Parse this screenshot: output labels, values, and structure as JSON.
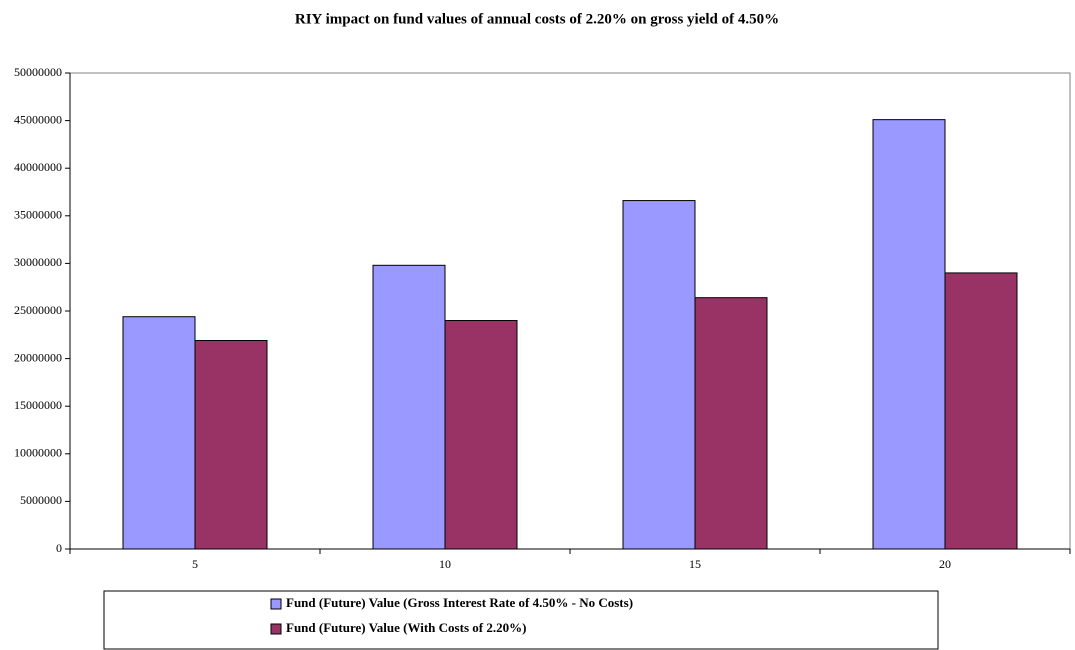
{
  "chart_data": {
    "type": "bar",
    "title": "RIY impact on fund values of annual costs of 2.20% on gross yield of 4.50%",
    "categories": [
      "5",
      "10",
      "15",
      "20"
    ],
    "series": [
      {
        "name": "Fund (Future) Value (Gross Interest Rate of 4.50% - No Costs)",
        "color": "#9999ff",
        "values": [
          24400000,
          29800000,
          36600000,
          45100000
        ]
      },
      {
        "name": "Fund (Future) Value (With Costs of 2.20%)",
        "color": "#993366",
        "values": [
          21900000,
          24000000,
          26400000,
          29000000
        ]
      }
    ],
    "ylim": [
      0,
      50000000
    ],
    "yticks": [
      0,
      5000000,
      10000000,
      15000000,
      20000000,
      25000000,
      30000000,
      35000000,
      40000000,
      45000000,
      50000000
    ],
    "grid": false,
    "legend": "bottom"
  }
}
